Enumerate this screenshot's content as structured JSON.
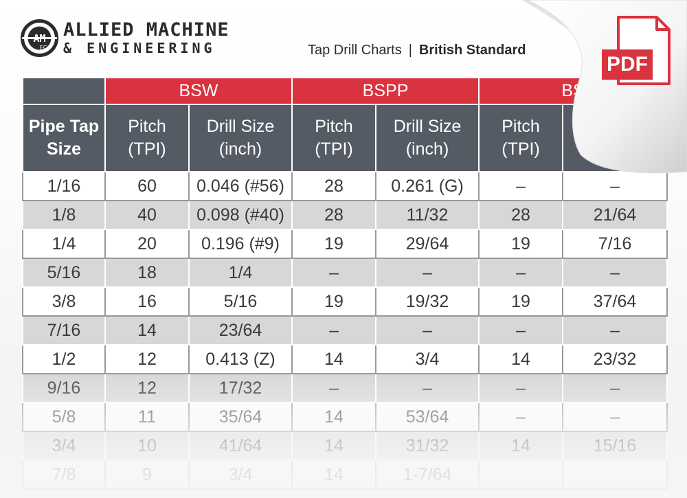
{
  "brand": {
    "line1": "ALLIED MACHINE",
    "line2": "& ENGINEERING",
    "mark": "AMEC",
    "accent": "#d9333f",
    "dark": "#545b64"
  },
  "breadcrumb": {
    "section": "Tap Drill Charts",
    "separator": "|",
    "current": "British Standard"
  },
  "pdf_badge": {
    "label": "PDF",
    "icon": "pdf-file-icon"
  },
  "table": {
    "corner": "Pipe Tap Size",
    "corner_l1": "Pipe Tap",
    "corner_l2": "Size",
    "groups": [
      "BSW",
      "BSPP",
      "BS"
    ],
    "sub_headers": {
      "pitch_l1": "Pitch",
      "pitch_l2": "(TPI)",
      "drill_l1": "Drill Size",
      "drill_l2": "(inch)"
    },
    "rows": [
      {
        "size": "1/16",
        "bsw_pitch": "60",
        "bsw_drill": "0.046 (#56)",
        "bspp_pitch": "28",
        "bspp_drill": "0.261 (G)",
        "bs_pitch": "–",
        "bs_drill": "–"
      },
      {
        "size": "1/8",
        "bsw_pitch": "40",
        "bsw_drill": "0.098 (#40)",
        "bspp_pitch": "28",
        "bspp_drill": "11/32",
        "bs_pitch": "28",
        "bs_drill": "21/64"
      },
      {
        "size": "1/4",
        "bsw_pitch": "20",
        "bsw_drill": "0.196 (#9)",
        "bspp_pitch": "19",
        "bspp_drill": "29/64",
        "bs_pitch": "19",
        "bs_drill": "7/16"
      },
      {
        "size": "5/16",
        "bsw_pitch": "18",
        "bsw_drill": "1/4",
        "bspp_pitch": "–",
        "bspp_drill": "–",
        "bs_pitch": "–",
        "bs_drill": "–"
      },
      {
        "size": "3/8",
        "bsw_pitch": "16",
        "bsw_drill": "5/16",
        "bspp_pitch": "19",
        "bspp_drill": "19/32",
        "bs_pitch": "19",
        "bs_drill": "37/64"
      },
      {
        "size": "7/16",
        "bsw_pitch": "14",
        "bsw_drill": "23/64",
        "bspp_pitch": "–",
        "bspp_drill": "–",
        "bs_pitch": "–",
        "bs_drill": "–"
      },
      {
        "size": "1/2",
        "bsw_pitch": "12",
        "bsw_drill": "0.413 (Z)",
        "bspp_pitch": "14",
        "bspp_drill": "3/4",
        "bs_pitch": "14",
        "bs_drill": "23/32"
      },
      {
        "size": "9/16",
        "bsw_pitch": "12",
        "bsw_drill": "17/32",
        "bspp_pitch": "–",
        "bspp_drill": "–",
        "bs_pitch": "–",
        "bs_drill": "–"
      },
      {
        "size": "5/8",
        "bsw_pitch": "11",
        "bsw_drill": "35/64",
        "bspp_pitch": "14",
        "bspp_drill": "53/64",
        "bs_pitch": "–",
        "bs_drill": "–"
      },
      {
        "size": "3/4",
        "bsw_pitch": "10",
        "bsw_drill": "41/64",
        "bspp_pitch": "14",
        "bspp_drill": "31/32",
        "bs_pitch": "14",
        "bs_drill": "15/16"
      },
      {
        "size": "7/8",
        "bsw_pitch": "9",
        "bsw_drill": "3/4",
        "bspp_pitch": "14",
        "bspp_drill": "1-7/64",
        "bs_pitch": "",
        "bs_drill": ""
      }
    ]
  }
}
